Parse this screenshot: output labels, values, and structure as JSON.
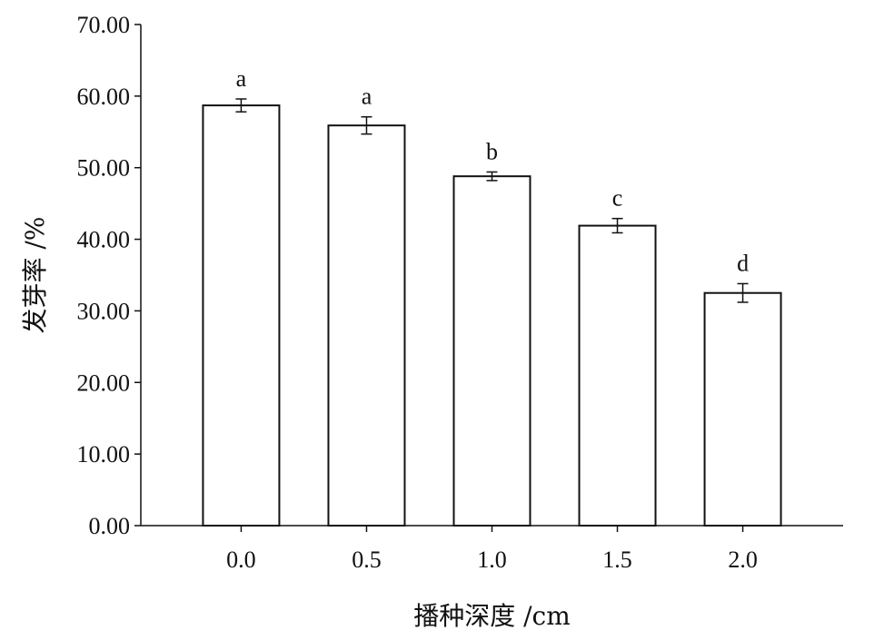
{
  "chart_data": {
    "type": "bar",
    "title": "",
    "xlabel": "播种深度 /cm",
    "ylabel": "发芽率 /%",
    "categories": [
      "0.0",
      "0.5",
      "1.0",
      "1.5",
      "2.0"
    ],
    "values": [
      58.7,
      55.9,
      48.8,
      41.9,
      32.5
    ],
    "errors": [
      0.9,
      1.2,
      0.6,
      1.0,
      1.3
    ],
    "significance_labels": [
      "a",
      "a",
      "b",
      "c",
      "d"
    ],
    "ylim": [
      0,
      70
    ],
    "yticks": [
      "0.00",
      "10.00",
      "20.00",
      "30.00",
      "40.00",
      "50.00",
      "60.00",
      "70.00"
    ],
    "grid": false,
    "bar_fill": "#ffffff",
    "bar_stroke": "#111111"
  }
}
